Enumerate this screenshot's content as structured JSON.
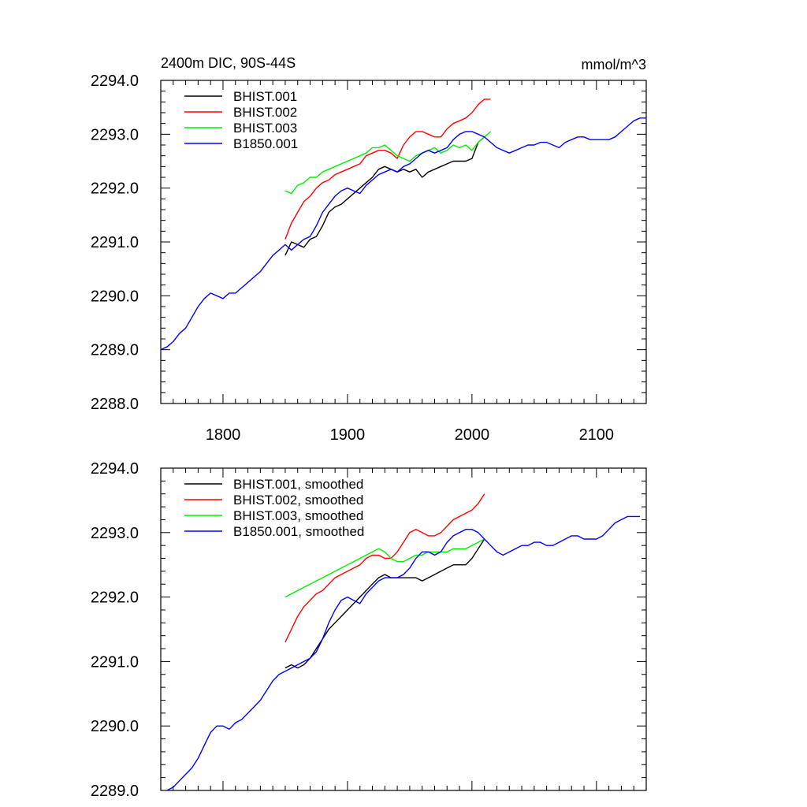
{
  "chart_data": [
    {
      "type": "line",
      "title": "2400m DIC, 90S-44S",
      "units": "mmol/m^3",
      "xlim": [
        1750,
        2140
      ],
      "ylim": [
        2288.0,
        2294.0
      ],
      "xticks": [
        1800,
        1900,
        2000,
        2100
      ],
      "xtick_labels": [
        "1800",
        "1900",
        "2000",
        "2100"
      ],
      "yticks": [
        2288.0,
        2289.0,
        2290.0,
        2291.0,
        2292.0,
        2293.0,
        2294.0
      ],
      "ytick_labels": [
        "2288.0",
        "2289.0",
        "2290.0",
        "2291.0",
        "2292.0",
        "2293.0",
        "2294.0"
      ],
      "legend_position": "top-left",
      "series": [
        {
          "name": "BHIST.001",
          "color": "#000000",
          "x": [
            1850,
            1855,
            1860,
            1865,
            1870,
            1875,
            1880,
            1885,
            1890,
            1895,
            1900,
            1905,
            1910,
            1915,
            1920,
            1925,
            1930,
            1935,
            1940,
            1945,
            1950,
            1955,
            1960,
            1965,
            1970,
            1975,
            1980,
            1985,
            1990,
            1995,
            2000,
            2005,
            2010
          ],
          "y": [
            2290.75,
            2291.0,
            2290.95,
            2290.9,
            2291.05,
            2291.1,
            2291.3,
            2291.55,
            2291.65,
            2291.7,
            2291.8,
            2291.9,
            2292.0,
            2292.1,
            2292.2,
            2292.35,
            2292.4,
            2292.35,
            2292.3,
            2292.35,
            2292.3,
            2292.35,
            2292.2,
            2292.3,
            2292.35,
            2292.4,
            2292.45,
            2292.5,
            2292.5,
            2292.5,
            2292.55,
            2292.85,
            2292.95
          ]
        },
        {
          "name": "BHIST.002",
          "color": "#ff0000",
          "x": [
            1850,
            1855,
            1860,
            1865,
            1870,
            1875,
            1880,
            1885,
            1890,
            1895,
            1900,
            1905,
            1910,
            1915,
            1920,
            1925,
            1930,
            1935,
            1940,
            1945,
            1950,
            1955,
            1960,
            1965,
            1970,
            1975,
            1980,
            1985,
            1990,
            1995,
            2000,
            2005,
            2010,
            2015
          ],
          "y": [
            2291.05,
            2291.35,
            2291.55,
            2291.75,
            2291.85,
            2292.0,
            2292.1,
            2292.15,
            2292.25,
            2292.3,
            2292.35,
            2292.4,
            2292.45,
            2292.6,
            2292.65,
            2292.7,
            2292.7,
            2292.65,
            2292.55,
            2292.8,
            2292.95,
            2293.05,
            2293.05,
            2293.0,
            2292.95,
            2292.95,
            2293.1,
            2293.2,
            2293.25,
            2293.3,
            2293.4,
            2293.55,
            2293.65,
            2293.65
          ]
        },
        {
          "name": "BHIST.003",
          "color": "#00ee00",
          "x": [
            1850,
            1855,
            1860,
            1865,
            1870,
            1875,
            1880,
            1885,
            1890,
            1895,
            1900,
            1905,
            1910,
            1915,
            1920,
            1925,
            1930,
            1935,
            1940,
            1945,
            1950,
            1955,
            1960,
            1965,
            1970,
            1975,
            1980,
            1985,
            1990,
            1995,
            2000,
            2005,
            2010,
            2015
          ],
          "y": [
            2291.95,
            2291.9,
            2292.05,
            2292.1,
            2292.2,
            2292.2,
            2292.3,
            2292.35,
            2292.4,
            2292.45,
            2292.5,
            2292.55,
            2292.6,
            2292.65,
            2292.75,
            2292.75,
            2292.8,
            2292.7,
            2292.6,
            2292.55,
            2292.5,
            2292.6,
            2292.65,
            2292.7,
            2292.75,
            2292.65,
            2292.7,
            2292.8,
            2292.75,
            2292.8,
            2292.7,
            2292.85,
            2292.95,
            2293.05
          ]
        },
        {
          "name": "B1850.001",
          "color": "#0000ff",
          "x": [
            1750,
            1755,
            1760,
            1765,
            1770,
            1775,
            1780,
            1785,
            1790,
            1795,
            1800,
            1805,
            1810,
            1815,
            1820,
            1825,
            1830,
            1835,
            1840,
            1845,
            1850,
            1855,
            1860,
            1865,
            1870,
            1875,
            1880,
            1885,
            1890,
            1895,
            1900,
            1905,
            1910,
            1915,
            1920,
            1925,
            1930,
            1935,
            1940,
            1945,
            1950,
            1955,
            1960,
            1965,
            1970,
            1975,
            1980,
            1985,
            1990,
            1995,
            2000,
            2005,
            2010,
            2015,
            2020,
            2025,
            2030,
            2035,
            2040,
            2045,
            2050,
            2055,
            2060,
            2065,
            2070,
            2075,
            2080,
            2085,
            2090,
            2095,
            2100,
            2105,
            2110,
            2115,
            2120,
            2125,
            2130,
            2135,
            2140
          ],
          "y": [
            2289.0,
            2289.05,
            2289.15,
            2289.3,
            2289.4,
            2289.6,
            2289.8,
            2289.95,
            2290.05,
            2290.0,
            2289.95,
            2290.05,
            2290.05,
            2290.15,
            2290.25,
            2290.35,
            2290.45,
            2290.6,
            2290.75,
            2290.85,
            2290.95,
            2290.85,
            2290.95,
            2291.05,
            2291.1,
            2291.3,
            2291.55,
            2291.7,
            2291.85,
            2291.95,
            2292.0,
            2291.95,
            2291.9,
            2292.05,
            2292.15,
            2292.25,
            2292.3,
            2292.35,
            2292.3,
            2292.4,
            2292.45,
            2292.55,
            2292.65,
            2292.7,
            2292.65,
            2292.7,
            2292.75,
            2292.9,
            2293.0,
            2293.05,
            2293.05,
            2293.0,
            2292.95,
            2292.85,
            2292.75,
            2292.7,
            2292.65,
            2292.7,
            2292.75,
            2292.8,
            2292.8,
            2292.85,
            2292.85,
            2292.8,
            2292.75,
            2292.85,
            2292.9,
            2292.95,
            2292.95,
            2292.9,
            2292.9,
            2292.9,
            2292.9,
            2292.95,
            2293.05,
            2293.15,
            2293.25,
            2293.3,
            2293.3
          ]
        }
      ]
    },
    {
      "type": "line",
      "title": "",
      "xlim": [
        1750,
        2140
      ],
      "ylim": [
        2289.0,
        2294.0
      ],
      "yticks": [
        2289.0,
        2290.0,
        2291.0,
        2292.0,
        2293.0,
        2294.0
      ],
      "ytick_labels": [
        "2289.0",
        "2290.0",
        "2291.0",
        "2292.0",
        "2293.0",
        "2294.0"
      ],
      "legend_position": "top-left",
      "series": [
        {
          "name": "BHIST.001, smoothed",
          "color": "#000000",
          "x": [
            1850,
            1855,
            1860,
            1865,
            1870,
            1875,
            1880,
            1885,
            1890,
            1895,
            1900,
            1905,
            1910,
            1915,
            1920,
            1925,
            1930,
            1935,
            1940,
            1945,
            1950,
            1955,
            1960,
            1965,
            1970,
            1975,
            1980,
            1985,
            1990,
            1995,
            2000,
            2005,
            2010
          ],
          "y": [
            2290.9,
            2290.95,
            2290.9,
            2290.95,
            2291.05,
            2291.2,
            2291.35,
            2291.5,
            2291.6,
            2291.7,
            2291.8,
            2291.9,
            2292.0,
            2292.1,
            2292.2,
            2292.3,
            2292.35,
            2292.3,
            2292.3,
            2292.3,
            2292.3,
            2292.3,
            2292.25,
            2292.3,
            2292.35,
            2292.4,
            2292.45,
            2292.5,
            2292.5,
            2292.5,
            2292.6,
            2292.75,
            2292.9
          ]
        },
        {
          "name": "BHIST.002, smoothed",
          "color": "#ff0000",
          "x": [
            1850,
            1855,
            1860,
            1865,
            1870,
            1875,
            1880,
            1885,
            1890,
            1895,
            1900,
            1905,
            1910,
            1915,
            1920,
            1925,
            1930,
            1935,
            1940,
            1945,
            1950,
            1955,
            1960,
            1965,
            1970,
            1975,
            1980,
            1985,
            1990,
            1995,
            2000,
            2005,
            2010
          ],
          "y": [
            2291.3,
            2291.5,
            2291.7,
            2291.85,
            2291.95,
            2292.05,
            2292.1,
            2292.2,
            2292.3,
            2292.35,
            2292.4,
            2292.45,
            2292.5,
            2292.6,
            2292.65,
            2292.65,
            2292.6,
            2292.6,
            2292.7,
            2292.85,
            2293.0,
            2293.05,
            2293.0,
            2292.95,
            2292.95,
            2293.0,
            2293.1,
            2293.2,
            2293.25,
            2293.3,
            2293.35,
            2293.45,
            2293.6
          ]
        },
        {
          "name": "BHIST.003, smoothed",
          "color": "#00ee00",
          "x": [
            1850,
            1855,
            1860,
            1865,
            1870,
            1875,
            1880,
            1885,
            1890,
            1895,
            1900,
            1905,
            1910,
            1915,
            1920,
            1925,
            1930,
            1935,
            1940,
            1945,
            1950,
            1955,
            1960,
            1965,
            1970,
            1975,
            1980,
            1985,
            1990,
            1995,
            2000,
            2005,
            2010
          ],
          "y": [
            2292.0,
            2292.05,
            2292.1,
            2292.15,
            2292.2,
            2292.25,
            2292.3,
            2292.35,
            2292.4,
            2292.45,
            2292.5,
            2292.55,
            2292.6,
            2292.65,
            2292.7,
            2292.75,
            2292.7,
            2292.6,
            2292.55,
            2292.55,
            2292.6,
            2292.65,
            2292.65,
            2292.7,
            2292.7,
            2292.7,
            2292.7,
            2292.75,
            2292.75,
            2292.75,
            2292.8,
            2292.85,
            2292.9
          ]
        },
        {
          "name": "B1850.001, smoothed",
          "color": "#0000ff",
          "x": [
            1755,
            1760,
            1765,
            1770,
            1775,
            1780,
            1785,
            1790,
            1795,
            1800,
            1805,
            1810,
            1815,
            1820,
            1825,
            1830,
            1835,
            1840,
            1845,
            1850,
            1855,
            1860,
            1865,
            1870,
            1875,
            1880,
            1885,
            1890,
            1895,
            1900,
            1905,
            1910,
            1915,
            1920,
            1925,
            1930,
            1935,
            1940,
            1945,
            1950,
            1955,
            1960,
            1965,
            1970,
            1975,
            1980,
            1985,
            1990,
            1995,
            2000,
            2005,
            2010,
            2015,
            2020,
            2025,
            2030,
            2035,
            2040,
            2045,
            2050,
            2055,
            2060,
            2065,
            2070,
            2075,
            2080,
            2085,
            2090,
            2095,
            2100,
            2105,
            2110,
            2115,
            2120,
            2125,
            2130,
            2135
          ],
          "y": [
            2289.0,
            2289.05,
            2289.15,
            2289.25,
            2289.35,
            2289.5,
            2289.7,
            2289.9,
            2290.0,
            2290.0,
            2289.95,
            2290.05,
            2290.1,
            2290.2,
            2290.3,
            2290.4,
            2290.55,
            2290.7,
            2290.8,
            2290.85,
            2290.9,
            2290.95,
            2291.0,
            2291.05,
            2291.15,
            2291.35,
            2291.6,
            2291.8,
            2291.95,
            2292.0,
            2291.95,
            2291.9,
            2292.05,
            2292.15,
            2292.25,
            2292.3,
            2292.3,
            2292.3,
            2292.35,
            2292.45,
            2292.6,
            2292.7,
            2292.7,
            2292.65,
            2292.7,
            2292.85,
            2292.95,
            2293.0,
            2293.05,
            2293.05,
            2293.0,
            2292.9,
            2292.8,
            2292.7,
            2292.65,
            2292.7,
            2292.75,
            2292.8,
            2292.8,
            2292.85,
            2292.85,
            2292.8,
            2292.8,
            2292.85,
            2292.9,
            2292.95,
            2292.95,
            2292.9,
            2292.9,
            2292.9,
            2292.95,
            2293.05,
            2293.15,
            2293.2,
            2293.25,
            2293.25,
            2293.25
          ]
        }
      ]
    }
  ]
}
